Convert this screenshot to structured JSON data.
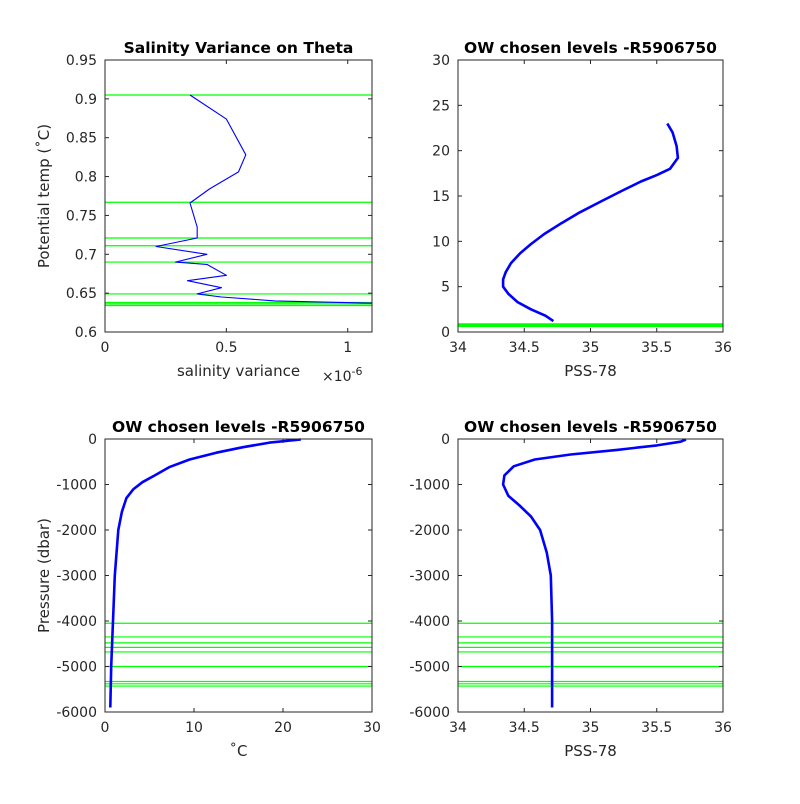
{
  "chart_data": [
    {
      "type": "line",
      "title": "Salinity Variance on Theta",
      "xlabel": "salinity variance",
      "x_exponent": "×10",
      "x_exponent_power": "-6",
      "ylabel": "Potential temp (˚C)",
      "xlim": [
        0,
        1.1
      ],
      "ylim": [
        0.6,
        0.95
      ],
      "xticks": [
        "0",
        "0.5",
        "1"
      ],
      "xtick_values": [
        0,
        0.5,
        1
      ],
      "yticks": [
        "0.6",
        "0.65",
        "0.7",
        "0.75",
        "0.8",
        "0.85",
        "0.9",
        "0.95"
      ],
      "ytick_values": [
        0.6,
        0.65,
        0.7,
        0.75,
        0.8,
        0.85,
        0.9,
        0.95
      ],
      "colors": {
        "series": "#0000ff",
        "levels": "#00ff00"
      },
      "series": [
        {
          "x": [
            1.1,
            0.7,
            0.48,
            0.38,
            0.48,
            0.34,
            0.5,
            0.42,
            0.29,
            0.42,
            0.21,
            0.38,
            0.38,
            0.35,
            0.43,
            0.55,
            0.58,
            0.5,
            0.35
          ],
          "y": [
            0.637,
            0.64,
            0.645,
            0.649,
            0.657,
            0.666,
            0.673,
            0.687,
            0.69,
            0.7,
            0.71,
            0.721,
            0.735,
            0.766,
            0.784,
            0.806,
            0.828,
            0.874,
            0.905
          ]
        }
      ],
      "hlines": [
        0.905,
        0.767,
        0.721,
        0.711,
        0.69,
        0.649,
        0.638,
        0.636,
        0.634
      ]
    },
    {
      "type": "line",
      "title": "OW chosen levels -R5906750",
      "xlabel": "PSS-78",
      "ylabel": "",
      "xlim": [
        34,
        36
      ],
      "ylim": [
        0,
        30
      ],
      "xticks": [
        "34",
        "34.5",
        "35",
        "35.5",
        "36"
      ],
      "xtick_values": [
        34,
        34.5,
        35,
        35.5,
        36
      ],
      "yticks": [
        "0",
        "5",
        "10",
        "15",
        "20",
        "25",
        "30"
      ],
      "ytick_values": [
        0,
        5,
        10,
        15,
        20,
        25,
        30
      ],
      "series": [
        {
          "x": [
            34.72,
            34.66,
            34.55,
            34.45,
            34.38,
            34.34,
            34.34,
            34.36,
            34.4,
            34.47,
            34.55,
            34.65,
            34.78,
            34.92,
            35.08,
            35.24,
            35.38,
            35.5,
            35.6,
            35.66,
            35.65,
            35.62,
            35.58
          ],
          "y": [
            1.2,
            1.8,
            2.5,
            3.3,
            4.2,
            5.0,
            5.8,
            6.6,
            7.6,
            8.7,
            9.7,
            10.8,
            12.0,
            13.2,
            14.4,
            15.6,
            16.6,
            17.3,
            18.0,
            19.2,
            20.5,
            22.0,
            23.0
          ]
        }
      ],
      "hlines": [
        0.6,
        0.7,
        0.8,
        0.9
      ]
    },
    {
      "type": "line",
      "title": "OW chosen levels -R5906750",
      "xlabel": "˚C",
      "ylabel": "Pressure (dbar)",
      "xlim": [
        0,
        30
      ],
      "ylim": [
        -6000,
        0
      ],
      "xticks": [
        "0",
        "10",
        "20",
        "30"
      ],
      "xtick_values": [
        0,
        10,
        20,
        30
      ],
      "yticks": [
        "-6000",
        "-5000",
        "-4000",
        "-3000",
        "-2000",
        "-1000",
        "0"
      ],
      "ytick_values": [
        -6000,
        -5000,
        -4000,
        -3000,
        -2000,
        -1000,
        0
      ],
      "series": [
        {
          "x": [
            0.6,
            0.7,
            0.9,
            1.1,
            1.5,
            1.9,
            2.4,
            3.2,
            4.2,
            5.6,
            7.2,
            9.5,
            12.5,
            15.5,
            18.5,
            22.0
          ],
          "y": [
            -5900,
            -5000,
            -4000,
            -3000,
            -2000,
            -1600,
            -1300,
            -1100,
            -950,
            -800,
            -620,
            -450,
            -300,
            -180,
            -80,
            -10
          ]
        }
      ],
      "hlines": [
        -4050,
        -4350,
        -4480,
        -4580,
        -4680,
        -5000,
        -5330,
        -5380,
        -5430
      ]
    },
    {
      "type": "line",
      "title": "OW chosen levels -R5906750",
      "xlabel": "PSS-78",
      "ylabel": "",
      "xlim": [
        34,
        36
      ],
      "ylim": [
        -6000,
        0
      ],
      "xticks": [
        "34",
        "34.5",
        "35",
        "35.5",
        "36"
      ],
      "xtick_values": [
        34,
        34.5,
        35,
        35.5,
        36
      ],
      "yticks": [
        "-6000",
        "-5000",
        "-4000",
        "-3000",
        "-2000",
        "-1000",
        "0"
      ],
      "ytick_values": [
        -6000,
        -5000,
        -4000,
        -3000,
        -2000,
        -1000,
        0
      ],
      "series": [
        {
          "x": [
            34.71,
            34.71,
            34.71,
            34.7,
            34.67,
            34.62,
            34.55,
            34.46,
            34.38,
            34.34,
            34.35,
            34.42,
            34.58,
            34.85,
            35.2,
            35.5,
            35.68,
            35.72
          ],
          "y": [
            -5900,
            -5000,
            -4000,
            -3000,
            -2500,
            -2000,
            -1700,
            -1450,
            -1250,
            -1000,
            -800,
            -600,
            -450,
            -340,
            -240,
            -140,
            -60,
            -10
          ]
        }
      ],
      "hlines": [
        -4050,
        -4350,
        -4480,
        -4580,
        -4680,
        -5000,
        -5330,
        -5380,
        -5430
      ]
    }
  ]
}
